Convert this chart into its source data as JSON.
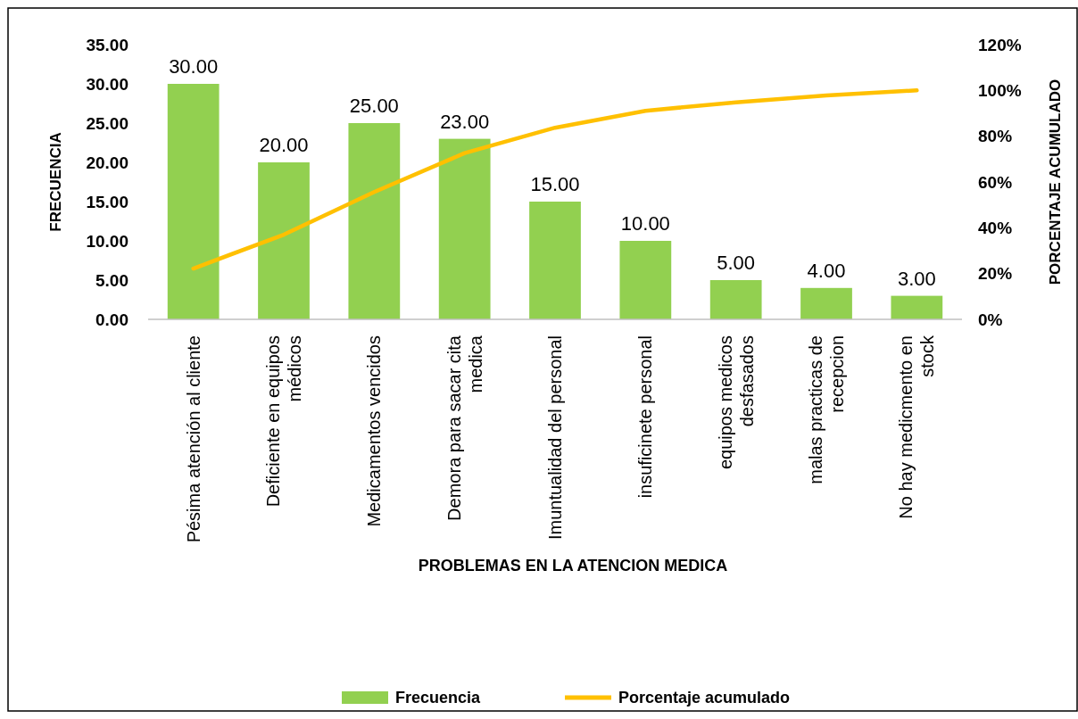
{
  "chart_data": {
    "type": "bar",
    "xlabel": "PROBLEMAS EN LA ATENCION MEDICA",
    "ylabel": "FRECUENCIA",
    "y2label": "PORCENTAJE ACUMULADO",
    "categories": [
      "Pésima atención al cliente",
      "Deficiente en equipos médicos",
      "Medicamentos vencidos",
      "Demora para sacar cita medica",
      "Imuntualidad del personal",
      "insuficinete personal",
      "equipos medicos desfasados",
      "malas practicas de recepcion",
      "No hay medicmento en stock"
    ],
    "series": [
      {
        "name": "Frecuencia",
        "color": "#92d050",
        "values": [
          30,
          20,
          25,
          23,
          15,
          10,
          5,
          4,
          3
        ],
        "value_labels": [
          "30.00",
          "20.00",
          "25.00",
          "23.00",
          "15.00",
          "10.00",
          "5.00",
          "4.00",
          "3.00"
        ]
      },
      {
        "name": "Porcentaje acumulado",
        "type": "line",
        "axis": "y2",
        "color": "#ffc000",
        "values": [
          22.2,
          37.0,
          55.6,
          72.6,
          83.7,
          91.1,
          94.8,
          97.8,
          100
        ]
      }
    ],
    "ylim": [
      0,
      35
    ],
    "yticks": [
      {
        "value": 0,
        "label": "0.00"
      },
      {
        "value": 5,
        "label": "5.00"
      },
      {
        "value": 10,
        "label": "10.00"
      },
      {
        "value": 15,
        "label": "15.00"
      },
      {
        "value": 20,
        "label": "20.00"
      },
      {
        "value": 25,
        "label": "25.00"
      },
      {
        "value": 30,
        "label": "30.00"
      },
      {
        "value": 35,
        "label": "35.00"
      }
    ],
    "y2lim": [
      0,
      120
    ],
    "y2ticks": [
      {
        "value": 0,
        "label": "0%"
      },
      {
        "value": 20,
        "label": "20%"
      },
      {
        "value": 40,
        "label": "40%"
      },
      {
        "value": 60,
        "label": "60%"
      },
      {
        "value": 80,
        "label": "80%"
      },
      {
        "value": 100,
        "label": "100%"
      },
      {
        "value": 120,
        "label": "120%"
      }
    ],
    "legend": "bottom",
    "grid": false,
    "marker": "none",
    "line_style": "solid"
  }
}
